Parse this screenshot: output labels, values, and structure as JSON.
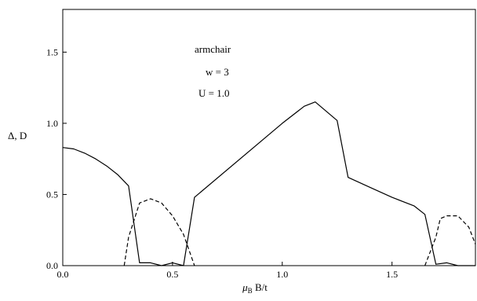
{
  "chart_data": {
    "type": "line",
    "xlabel_pre": "μ",
    "xlabel_sub": "B",
    "xlabel_post": " B/t",
    "ylabel": "Δ, D",
    "xlim": [
      0.0,
      1.88
    ],
    "ylim": [
      0.0,
      1.8
    ],
    "xticks": [
      0.0,
      0.5,
      1.0,
      1.5
    ],
    "xtick_labels": [
      "0.0",
      "0.5",
      "1.0",
      "1.5"
    ],
    "yticks": [
      0.0,
      0.5,
      1.0,
      1.5
    ],
    "ytick_labels": [
      "0.0",
      "0.5",
      "1.0",
      "1.5"
    ],
    "grid": false,
    "annotations": [
      "armchair",
      "w = 3",
      "U = 1.0"
    ],
    "series": [
      {
        "style": "solid",
        "color": "#000000",
        "points": [
          [
            0.0,
            0.83
          ],
          [
            0.05,
            0.82
          ],
          [
            0.1,
            0.79
          ],
          [
            0.15,
            0.75
          ],
          [
            0.2,
            0.7
          ],
          [
            0.25,
            0.64
          ],
          [
            0.3,
            0.56
          ],
          [
            0.35,
            0.02
          ],
          [
            0.4,
            0.02
          ],
          [
            0.45,
            0.0
          ],
          [
            0.5,
            0.02
          ],
          [
            0.55,
            0.0
          ],
          [
            0.6,
            0.48
          ],
          [
            1.0,
            1.0
          ],
          [
            1.1,
            1.12
          ],
          [
            1.15,
            1.15
          ],
          [
            1.25,
            1.02
          ],
          [
            1.3,
            0.62
          ],
          [
            1.4,
            0.55
          ],
          [
            1.5,
            0.48
          ],
          [
            1.6,
            0.42
          ],
          [
            1.65,
            0.36
          ],
          [
            1.7,
            0.01
          ],
          [
            1.75,
            0.02
          ],
          [
            1.8,
            0.0
          ],
          [
            1.88,
            0.0
          ]
        ]
      },
      {
        "style": "dashed",
        "color": "#000000",
        "points": [
          [
            0.28,
            0.0
          ],
          [
            0.3,
            0.2
          ],
          [
            0.35,
            0.44
          ],
          [
            0.4,
            0.47
          ],
          [
            0.45,
            0.44
          ],
          [
            0.5,
            0.35
          ],
          [
            0.55,
            0.22
          ],
          [
            0.6,
            0.0
          ]
        ]
      },
      {
        "style": "dashed",
        "color": "#000000",
        "points": [
          [
            1.65,
            0.0
          ],
          [
            1.7,
            0.2
          ],
          [
            1.72,
            0.33
          ],
          [
            1.75,
            0.35
          ],
          [
            1.8,
            0.35
          ],
          [
            1.85,
            0.27
          ],
          [
            1.88,
            0.15
          ]
        ]
      }
    ]
  }
}
